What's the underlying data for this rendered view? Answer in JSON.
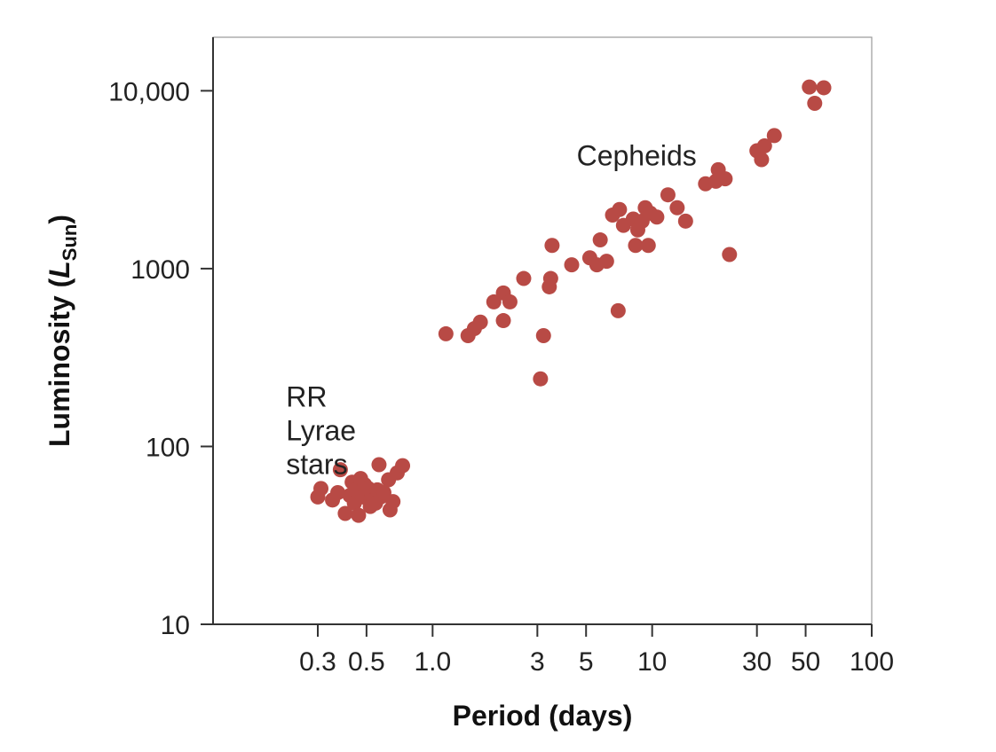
{
  "chart_data": {
    "type": "scatter",
    "title": "",
    "xlabel": "Period (days)",
    "ylabel": {
      "main": "Luminosity (",
      "symbol": "L",
      "subscript": "Sun",
      "close": ")"
    },
    "x_scale": "log",
    "y_scale": "log",
    "xlim": [
      0.1,
      100
    ],
    "ylim": [
      10,
      20000
    ],
    "x_ticks": [
      {
        "value": 0.3,
        "label": "0.3"
      },
      {
        "value": 0.5,
        "label": "0.5"
      },
      {
        "value": 1.0,
        "label": "1.0"
      },
      {
        "value": 3,
        "label": "3"
      },
      {
        "value": 5,
        "label": "5"
      },
      {
        "value": 10,
        "label": "10"
      },
      {
        "value": 30,
        "label": "30"
      },
      {
        "value": 50,
        "label": "50"
      },
      {
        "value": 100,
        "label": "100"
      }
    ],
    "y_ticks": [
      {
        "value": 10,
        "label": "10"
      },
      {
        "value": 100,
        "label": "100"
      },
      {
        "value": 1000,
        "label": "1000"
      },
      {
        "value": 10000,
        "label": "10,000"
      }
    ],
    "grid": false,
    "legend": "none",
    "marker_color": "#b84a45",
    "annotations": [
      {
        "lines": [
          "RR",
          "Lyrae",
          "stars"
        ],
        "x": 0.215,
        "y": 70
      },
      {
        "lines": [
          "Cepheids"
        ],
        "x": 8.5,
        "y": 3800
      }
    ],
    "series": [
      {
        "points": [
          [
            0.3,
            52
          ],
          [
            0.31,
            58
          ],
          [
            0.35,
            50
          ],
          [
            0.37,
            55
          ],
          [
            0.38,
            74
          ],
          [
            0.4,
            42
          ],
          [
            0.42,
            53
          ],
          [
            0.43,
            63
          ],
          [
            0.44,
            48
          ],
          [
            0.45,
            57
          ],
          [
            0.46,
            41
          ],
          [
            0.47,
            66
          ],
          [
            0.48,
            52
          ],
          [
            0.49,
            61
          ],
          [
            0.5,
            55
          ],
          [
            0.51,
            58
          ],
          [
            0.52,
            46
          ],
          [
            0.53,
            53
          ],
          [
            0.54,
            50
          ],
          [
            0.55,
            48
          ],
          [
            0.56,
            57
          ],
          [
            0.57,
            79
          ],
          [
            0.58,
            52
          ],
          [
            0.6,
            55
          ],
          [
            0.63,
            65
          ],
          [
            0.64,
            44
          ],
          [
            0.66,
            49
          ],
          [
            0.69,
            71
          ],
          [
            0.73,
            78
          ],
          [
            1.15,
            430
          ],
          [
            1.45,
            420
          ],
          [
            1.55,
            460
          ],
          [
            1.65,
            500
          ],
          [
            1.9,
            650
          ],
          [
            2.1,
            730
          ],
          [
            2.1,
            510
          ],
          [
            2.25,
            650
          ],
          [
            2.6,
            880
          ],
          [
            3.1,
            240
          ],
          [
            3.2,
            420
          ],
          [
            3.4,
            790
          ],
          [
            3.45,
            880
          ],
          [
            3.5,
            1350
          ],
          [
            4.3,
            1050
          ],
          [
            5.2,
            1150
          ],
          [
            5.6,
            1050
          ],
          [
            5.8,
            1450
          ],
          [
            6.2,
            1100
          ],
          [
            6.6,
            2000
          ],
          [
            7.0,
            580
          ],
          [
            7.1,
            2150
          ],
          [
            7.4,
            1750
          ],
          [
            8.2,
            1900
          ],
          [
            8.6,
            1650
          ],
          [
            8.4,
            1350
          ],
          [
            9.0,
            1850
          ],
          [
            9.3,
            2200
          ],
          [
            9.6,
            1350
          ],
          [
            9.8,
            2050
          ],
          [
            10.5,
            1950
          ],
          [
            11.8,
            2600
          ],
          [
            13.0,
            2200
          ],
          [
            14.2,
            1850
          ],
          [
            17.5,
            3000
          ],
          [
            19.5,
            3100
          ],
          [
            20.0,
            3600
          ],
          [
            21.5,
            3200
          ],
          [
            22.5,
            1200
          ],
          [
            30.0,
            4600
          ],
          [
            31.5,
            4100
          ],
          [
            32.5,
            4900
          ],
          [
            36.0,
            5600
          ],
          [
            52.0,
            10500
          ],
          [
            55.0,
            8500
          ],
          [
            60.5,
            10400
          ]
        ]
      }
    ]
  }
}
